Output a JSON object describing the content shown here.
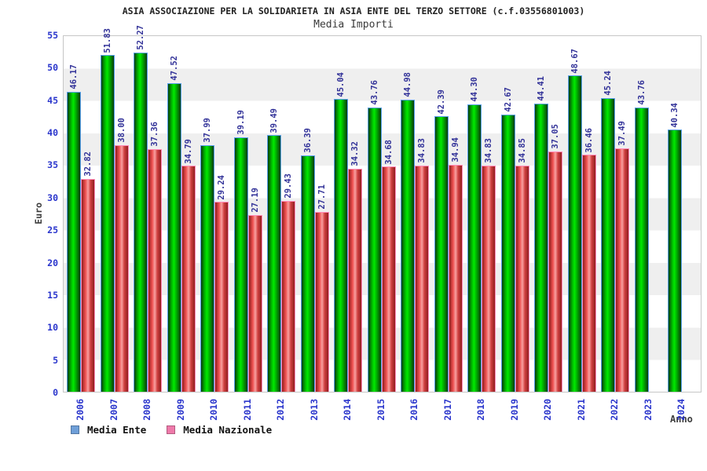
{
  "header": {
    "title": "ASIA ASSOCIAZIONE PER LA SOLIDARIETA IN ASIA ENTE DEL TERZO SETTORE (c.f.03556801003)",
    "subtitle": "Media Importi"
  },
  "axes": {
    "y_label": "Euro",
    "x_label": "Anno"
  },
  "legend": {
    "items": [
      {
        "label": "Media Ente",
        "swatch_color": "#6f9fd8"
      },
      {
        "label": "Media Nazionale",
        "swatch_color": "#ee7aaa"
      }
    ]
  },
  "colors": {
    "bar_green_main": "#00cc00",
    "bar_green_edge": "#0a3a0a",
    "bar_green_cap": "#58a0ee",
    "bar_red_main": "#e05050",
    "bar_red_edge": "#8f1f1f",
    "bar_red_cap": "#ff8ab8",
    "value_label": "#333399",
    "tick_label": "#2a35cc",
    "band_gray": "#efefef",
    "band_white": "#ffffff"
  },
  "chart_data": {
    "type": "bar",
    "title": "ASIA ASSOCIAZIONE PER LA SOLIDARIETA IN ASIA ENTE DEL TERZO SETTORE (c.f.03556801003)",
    "subtitle": "Media Importi",
    "xlabel": "Anno",
    "ylabel": "Euro",
    "ylim": [
      0,
      55
    ],
    "yticks": [
      0,
      5,
      10,
      15,
      20,
      25,
      30,
      35,
      40,
      45,
      50,
      55
    ],
    "grid": "alternating horizontal gray/white bands every 5 units",
    "legend_position": "bottom-left",
    "value_labels": "rotated 90deg above each bar, 2 decimals",
    "categories": [
      "2006",
      "2007",
      "2008",
      "2009",
      "2010",
      "2011",
      "2012",
      "2013",
      "2014",
      "2015",
      "2016",
      "2017",
      "2018",
      "2019",
      "2020",
      "2021",
      "2022",
      "2023",
      "2024"
    ],
    "series": [
      {
        "name": "Media Ente",
        "bar_color": "green gradient",
        "values": [
          46.17,
          51.83,
          52.27,
          47.52,
          37.99,
          39.19,
          39.49,
          36.39,
          45.04,
          43.76,
          44.98,
          42.39,
          44.3,
          42.67,
          44.41,
          48.67,
          45.24,
          43.76,
          40.34
        ]
      },
      {
        "name": "Media Nazionale",
        "bar_color": "red gradient",
        "values": [
          32.82,
          38.0,
          37.36,
          34.79,
          29.24,
          27.19,
          29.43,
          27.71,
          34.32,
          34.68,
          34.83,
          34.94,
          34.83,
          34.85,
          37.05,
          36.46,
          37.49,
          null,
          null
        ]
      }
    ]
  }
}
